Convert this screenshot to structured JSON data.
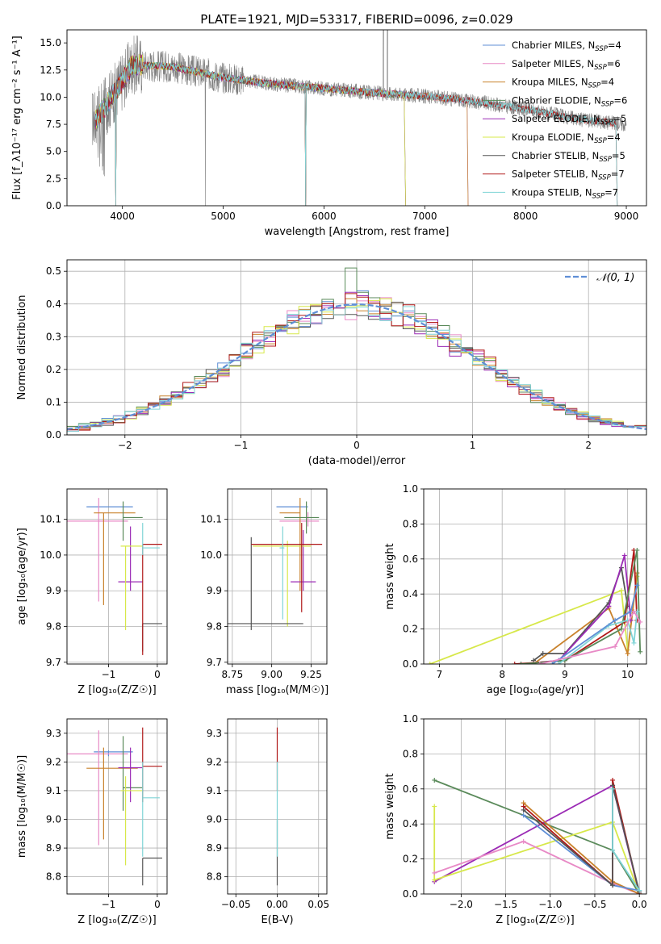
{
  "colors": {
    "chabrier_miles": "#5f8fd6",
    "salpeter_miles": "#e88ac6",
    "kroupa_miles": "#c9822c",
    "chabrier_elodie": "#5a8a5a",
    "salpeter_elodie": "#9b2bb5",
    "kroupa_elodie": "#d7e84a",
    "chabrier_stelib": "#555555",
    "salpeter_stelib": "#b01818",
    "kroupa_stelib": "#7fd4d6",
    "data": "#808080",
    "gauss": "#5f8fd6",
    "grid": "#b0b0b0"
  },
  "chart_data": [
    {
      "id": "spectrum",
      "type": "line",
      "title": "PLATE=1921, MJD=53317, FIBERID=0096, z=0.029",
      "xlabel": "wavelength [Angstrom, rest frame]",
      "ylabel": "Flux [f_λ10⁻¹⁷ erg cm⁻² s⁻¹ A⁻¹]",
      "xlim": [
        3450,
        9200
      ],
      "ylim": [
        0,
        16.2
      ],
      "xticks": [
        4000,
        5000,
        6000,
        7000,
        8000,
        9000
      ],
      "yticks": [
        0.0,
        2.5,
        5.0,
        7.5,
        10.0,
        12.5,
        15.0
      ],
      "grid": false,
      "legend_position": "top-right",
      "continuum": {
        "x": [
          3750,
          4000,
          4100,
          4500,
          5000,
          5500,
          6000,
          6500,
          7000,
          7500,
          8000,
          8500,
          9000
        ],
        "y": [
          8.0,
          11.5,
          13.0,
          12.8,
          11.8,
          11.2,
          10.8,
          10.4,
          10.1,
          9.6,
          8.9,
          8.0,
          7.5
        ]
      },
      "series": [
        {
          "name": "Chabrier MILES, N_SSP=4",
          "label_base": "Chabrier MILES, N",
          "label_sub": "SSP",
          "label_tail": "=4",
          "color_key": "chabrier_miles",
          "end": 7420
        },
        {
          "name": "Salpeter MILES, N_SSP=6",
          "label_base": "Salpeter MILES, N",
          "label_sub": "SSP",
          "label_tail": "=6",
          "color_key": "salpeter_miles",
          "end": 7420
        },
        {
          "name": "Kroupa MILES, N_SSP=4",
          "label_base": "Kroupa MILES, N",
          "label_sub": "SSP",
          "label_tail": "=4",
          "color_key": "kroupa_miles",
          "end": 7420
        },
        {
          "name": "Chabrier ELODIE, N_SSP=6",
          "label_base": "Chabrier ELODIE, N",
          "label_sub": "SSP",
          "label_tail": "=6",
          "color_key": "chabrier_elodie",
          "end": 6800
        },
        {
          "name": "Salpeter ELODIE, N_SSP=5",
          "label_base": "Salpeter ELODIE, N",
          "label_sub": "SSP",
          "label_tail": "=5",
          "color_key": "salpeter_elodie",
          "end": 6800
        },
        {
          "name": "Kroupa ELODIE, N_SSP=4",
          "label_base": "Kroupa ELODIE, N",
          "label_sub": "SSP",
          "label_tail": "=4",
          "color_key": "kroupa_elodie",
          "end": 6800
        },
        {
          "name": "Chabrier STELIB, N_SSP=5",
          "label_base": "Chabrier STELIB, N",
          "label_sub": "SSP",
          "label_tail": "=5",
          "color_key": "chabrier_stelib",
          "end": 8900
        },
        {
          "name": "Salpeter STELIB, N_SSP=7",
          "label_base": "Salpeter STELIB, N",
          "label_sub": "SSP",
          "label_tail": "=7",
          "color_key": "salpeter_stelib",
          "end": 8900
        },
        {
          "name": "Kroupa STELIB, N_SSP=7",
          "label_base": "Kroupa STELIB, N",
          "label_sub": "SSP",
          "label_tail": "=7",
          "color_key": "kroupa_stelib",
          "end": 8900
        }
      ]
    },
    {
      "id": "residuals",
      "type": "step",
      "xlabel": "(data-model)/error",
      "ylabel": "Normed distribution",
      "xlim": [
        -2.5,
        2.5
      ],
      "ylim": [
        0,
        0.535
      ],
      "xticks": [
        -2,
        -1,
        0,
        1,
        2
      ],
      "xtick_labels": [
        "−2",
        "−1",
        "0",
        "1",
        "2"
      ],
      "yticks": [
        0.0,
        0.1,
        0.2,
        0.3,
        0.4,
        0.5
      ],
      "grid": true,
      "legend_position": "top-right",
      "gauss_label": "𝒩(0, 1)",
      "bins": {
        "start": -2.5,
        "width": 0.1,
        "count": 50
      },
      "peaks": [
        0.445,
        0.425,
        0.455,
        0.51,
        0.42,
        0.46,
        0.43,
        0.435,
        0.42
      ]
    },
    {
      "id": "age_vs_Z",
      "type": "errorbar",
      "xlabel": "Z [log₁₀(Z/Z☉)]",
      "ylabel": "age  [log₁₀(age/yr)]",
      "xlim": [
        -1.85,
        0.2
      ],
      "ylim": [
        9.695,
        10.185
      ],
      "xticks": [
        -1,
        0
      ],
      "xtick_labels": [
        "−1",
        "0"
      ],
      "yticks": [
        9.7,
        9.8,
        9.9,
        10.0,
        10.1
      ],
      "ytick_labels": [
        "9.7",
        "9.8",
        "9.9",
        "10.0",
        "10.1"
      ],
      "grid": true,
      "points": [
        {
          "color_key": "chabrier_miles",
          "x": -0.8,
          "x_lo": -1.45,
          "x_hi": -0.5,
          "y": 10.135,
          "y_lo": 10.135,
          "y_hi": 10.135
        },
        {
          "color_key": "salpeter_miles",
          "x": -1.2,
          "x_lo": -1.85,
          "x_hi": -0.6,
          "y": 10.095,
          "y_lo": 9.87,
          "y_hi": 10.16
        },
        {
          "color_key": "kroupa_miles",
          "x": -1.1,
          "x_lo": -1.3,
          "x_hi": -0.45,
          "y": 10.118,
          "y_lo": 9.86,
          "y_hi": 10.118
        },
        {
          "color_key": "chabrier_elodie",
          "x": -0.7,
          "x_lo": -0.7,
          "x_hi": -0.3,
          "y": 10.105,
          "y_lo": 10.04,
          "y_hi": 10.15
        },
        {
          "color_key": "salpeter_elodie",
          "x": -0.55,
          "x_lo": -0.8,
          "x_hi": -0.3,
          "y": 9.925,
          "y_lo": 9.9,
          "y_hi": 10.08
        },
        {
          "color_key": "kroupa_elodie",
          "x": -0.65,
          "x_lo": -0.75,
          "x_hi": -0.3,
          "y": 10.025,
          "y_lo": 9.79,
          "y_hi": 10.025
        },
        {
          "color_key": "chabrier_stelib",
          "x": -0.3,
          "x_lo": -0.3,
          "x_hi": 0.1,
          "y": 9.808,
          "y_lo": 9.73,
          "y_hi": 9.808
        },
        {
          "color_key": "salpeter_stelib",
          "x": -0.3,
          "x_lo": -0.3,
          "x_hi": 0.1,
          "y": 10.03,
          "y_lo": 9.72,
          "y_hi": 10.03
        },
        {
          "color_key": "kroupa_stelib",
          "x": -0.3,
          "x_lo": -0.3,
          "x_hi": 0.05,
          "y": 10.02,
          "y_lo": 10.0,
          "y_hi": 10.09
        }
      ]
    },
    {
      "id": "age_vs_mass",
      "type": "errorbar",
      "xlabel": "mass [log₁₀(M/M☉)]",
      "ylabel": "",
      "xlim": [
        8.72,
        9.35
      ],
      "ylim": [
        9.695,
        10.185
      ],
      "xticks": [
        8.75,
        9.0,
        9.25
      ],
      "xtick_labels": [
        "8.75",
        "9.00",
        "9.25"
      ],
      "yticks": [
        9.7,
        9.8,
        9.9,
        10.0,
        10.1
      ],
      "ytick_labels": [
        "9.7",
        "9.8",
        "9.9",
        "10.0",
        "10.1"
      ],
      "grid": true,
      "points": [
        {
          "color_key": "chabrier_miles",
          "x": 9.23,
          "x_lo": 9.03,
          "x_hi": 9.23,
          "y": 10.135,
          "y_lo": 10.135,
          "y_hi": 10.135
        },
        {
          "color_key": "salpeter_miles",
          "x": 9.23,
          "x_lo": 9.05,
          "x_hi": 9.3,
          "y": 10.095,
          "y_lo": 10.08,
          "y_hi": 10.12
        },
        {
          "color_key": "kroupa_miles",
          "x": 9.18,
          "x_lo": 9.05,
          "x_hi": 9.18,
          "y": 10.118,
          "y_lo": 9.9,
          "y_hi": 10.16
        },
        {
          "color_key": "chabrier_elodie",
          "x": 9.22,
          "x_lo": 9.08,
          "x_hi": 9.3,
          "y": 10.105,
          "y_lo": 10.06,
          "y_hi": 10.15
        },
        {
          "color_key": "salpeter_elodie",
          "x": 9.2,
          "x_lo": 9.12,
          "x_hi": 9.28,
          "y": 9.925,
          "y_lo": 9.9,
          "y_hi": 10.07
        },
        {
          "color_key": "kroupa_elodie",
          "x": 9.1,
          "x_lo": 8.88,
          "x_hi": 9.25,
          "y": 10.025,
          "y_lo": 9.8,
          "y_hi": 10.04
        },
        {
          "color_key": "chabrier_stelib",
          "x": 8.87,
          "x_lo": 8.72,
          "x_hi": 9.2,
          "y": 9.808,
          "y_lo": 9.79,
          "y_hi": 10.05
        },
        {
          "color_key": "salpeter_stelib",
          "x": 9.19,
          "x_lo": 8.87,
          "x_hi": 9.32,
          "y": 10.03,
          "y_lo": 9.84,
          "y_hi": 10.09
        },
        {
          "color_key": "kroupa_stelib",
          "x": 9.07,
          "x_lo": 9.05,
          "x_hi": 9.08,
          "y": 10.02,
          "y_lo": 9.82,
          "y_hi": 10.08
        }
      ]
    },
    {
      "id": "mass_weight_vs_age",
      "type": "line",
      "xlabel": "age  [log₁₀(age/yr)]",
      "ylabel": "mass weight",
      "xlim": [
        6.75,
        10.3
      ],
      "ylim": [
        0,
        1.0
      ],
      "xticks": [
        7,
        8,
        9,
        10
      ],
      "xtick_labels": [
        "7",
        "8",
        "9",
        "10"
      ],
      "yticks": [
        0.0,
        0.2,
        0.4,
        0.6,
        0.8,
        1.0
      ],
      "grid": true,
      "series": [
        {
          "color_key": "kroupa_elodie",
          "x": [
            6.85,
            9.9,
            10.0,
            10.15
          ],
          "y": [
            0.0,
            0.42,
            0.08,
            0.5
          ]
        },
        {
          "color_key": "kroupa_miles",
          "x": [
            8.5,
            9.7,
            10.0,
            10.15
          ],
          "y": [
            0.0,
            0.32,
            0.06,
            0.52
          ]
        },
        {
          "color_key": "chabrier_stelib",
          "x": [
            8.5,
            8.65,
            9.0,
            9.7,
            9.9,
            10.0
          ],
          "y": [
            0.02,
            0.06,
            0.06,
            0.35,
            0.55,
            0.33
          ]
        },
        {
          "color_key": "salpeter_elodie",
          "x": [
            8.3,
            8.9,
            9.7,
            9.95,
            10.05
          ],
          "y": [
            0.0,
            0.02,
            0.33,
            0.62,
            0.25
          ]
        },
        {
          "color_key": "salpeter_stelib",
          "x": [
            8.2,
            9.0,
            9.95,
            10.1,
            10.15
          ],
          "y": [
            0.0,
            0.02,
            0.24,
            0.65,
            0.25
          ]
        },
        {
          "color_key": "chabrier_elodie",
          "x": [
            8.3,
            9.0,
            9.9,
            10.15,
            10.2
          ],
          "y": [
            0.0,
            0.02,
            0.2,
            0.65,
            0.07
          ]
        },
        {
          "color_key": "kroupa_stelib",
          "x": [
            8.9,
            9.7,
            10.0,
            10.1,
            10.15
          ],
          "y": [
            0.0,
            0.22,
            0.25,
            0.12,
            0.3
          ]
        },
        {
          "color_key": "chabrier_miles",
          "x": [
            8.8,
            9.8,
            10.05,
            10.15
          ],
          "y": [
            0.0,
            0.25,
            0.3,
            0.45
          ]
        },
        {
          "color_key": "salpeter_miles",
          "x": [
            8.6,
            9.8,
            10.1,
            10.2
          ],
          "y": [
            0.0,
            0.1,
            0.3,
            0.24
          ]
        }
      ]
    },
    {
      "id": "mass_vs_Z",
      "type": "errorbar",
      "xlabel": "Z [log₁₀(Z/Z☉)]",
      "ylabel": "mass [log₁₀(M/M☉)]",
      "xlim": [
        -1.85,
        0.2
      ],
      "ylim": [
        8.74,
        9.35
      ],
      "xticks": [
        -1,
        0
      ],
      "xtick_labels": [
        "−1",
        "0"
      ],
      "yticks": [
        8.8,
        8.9,
        9.0,
        9.1,
        9.2,
        9.3
      ],
      "ytick_labels": [
        "8.8",
        "8.9",
        "9.0",
        "9.1",
        "9.2",
        "9.3"
      ],
      "grid": true,
      "points": [
        {
          "color_key": "chabrier_miles",
          "x": -1.0,
          "x_lo": -1.3,
          "x_hi": -0.5,
          "y": 9.235,
          "y_lo": 9.22,
          "y_hi": 9.24
        },
        {
          "color_key": "salpeter_miles",
          "x": -1.2,
          "x_lo": -1.85,
          "x_hi": -0.6,
          "y": 9.228,
          "y_lo": 8.91,
          "y_hi": 9.31
        },
        {
          "color_key": "kroupa_miles",
          "x": -1.1,
          "x_lo": -1.45,
          "x_hi": -0.4,
          "y": 9.178,
          "y_lo": 8.93,
          "y_hi": 9.25
        },
        {
          "color_key": "chabrier_elodie",
          "x": -0.7,
          "x_lo": -0.7,
          "x_hi": -0.3,
          "y": 9.11,
          "y_lo": 9.03,
          "y_hi": 9.29
        },
        {
          "color_key": "salpeter_elodie",
          "x": -0.55,
          "x_lo": -0.8,
          "x_hi": -0.3,
          "y": 9.18,
          "y_lo": 9.06,
          "y_hi": 9.25
        },
        {
          "color_key": "kroupa_elodie",
          "x": -0.65,
          "x_lo": -0.75,
          "x_hi": -0.3,
          "y": 9.1,
          "y_lo": 8.84,
          "y_hi": 9.15
        },
        {
          "color_key": "chabrier_stelib",
          "x": -0.3,
          "x_lo": -0.3,
          "x_hi": 0.1,
          "y": 8.865,
          "y_lo": 8.77,
          "y_hi": 8.865
        },
        {
          "color_key": "salpeter_stelib",
          "x": -0.3,
          "x_lo": -0.3,
          "x_hi": 0.1,
          "y": 9.185,
          "y_lo": 9.06,
          "y_hi": 9.32
        },
        {
          "color_key": "kroupa_stelib",
          "x": -0.3,
          "x_lo": -0.3,
          "x_hi": 0.05,
          "y": 9.075,
          "y_lo": 8.87,
          "y_hi": 9.2
        }
      ]
    },
    {
      "id": "mass_vs_EBV",
      "type": "errorbar",
      "xlabel": "E(B-V)",
      "ylabel": "",
      "xlim": [
        -0.06,
        0.06
      ],
      "ylim": [
        8.74,
        9.35
      ],
      "xticks": [
        -0.05,
        0.0,
        0.05
      ],
      "xtick_labels": [
        "−0.05",
        "0.00",
        "0.05"
      ],
      "yticks": [
        8.8,
        8.9,
        9.0,
        9.1,
        9.2,
        9.3
      ],
      "ytick_labels": [
        "8.8",
        "8.9",
        "9.0",
        "9.1",
        "9.2",
        "9.3"
      ],
      "grid": true,
      "points": [
        {
          "color_key": "chabrier_stelib",
          "x": 0.0,
          "x_lo": 0.0,
          "x_hi": 0.0,
          "y": 8.87,
          "y_lo": 8.77,
          "y_hi": 9.0
        },
        {
          "color_key": "salpeter_stelib",
          "x": 0.0,
          "x_lo": 0.0,
          "x_hi": 0.0,
          "y": 9.2,
          "y_lo": 9.1,
          "y_hi": 9.32
        },
        {
          "color_key": "kroupa_stelib",
          "x": 0.0,
          "x_lo": 0.0,
          "x_hi": 0.0,
          "y": 9.08,
          "y_lo": 8.87,
          "y_hi": 9.2
        }
      ]
    },
    {
      "id": "mass_weight_vs_Z",
      "type": "line",
      "xlabel": "Z [log₁₀(Z/Z☉)]",
      "ylabel": "mass weight",
      "xlim": [
        -2.42,
        0.08
      ],
      "ylim": [
        0,
        1.0
      ],
      "xticks": [
        -2.0,
        -1.5,
        -1.0,
        -0.5,
        0.0
      ],
      "xtick_labels": [
        "−2.0",
        "−1.5",
        "−1.0",
        "−0.5",
        "0.0"
      ],
      "yticks": [
        0.0,
        0.2,
        0.4,
        0.6,
        0.8,
        1.0
      ],
      "grid": true,
      "series": [
        {
          "color_key": "chabrier_elodie",
          "x": [
            -2.3,
            -0.3,
            0.0
          ],
          "y": [
            0.65,
            0.25,
            0.0
          ]
        },
        {
          "color_key": "salpeter_elodie",
          "x": [
            -2.3,
            -0.3,
            0.0
          ],
          "y": [
            0.07,
            0.62,
            0.0
          ]
        },
        {
          "color_key": "kroupa_elodie",
          "x": [
            -2.3,
            -2.3,
            -0.3,
            0.0
          ],
          "y": [
            0.5,
            0.08,
            0.41,
            0.0
          ]
        },
        {
          "color_key": "salpeter_miles",
          "x": [
            -2.3,
            -1.3,
            -0.3,
            0.0
          ],
          "y": [
            0.12,
            0.3,
            0.06,
            0.0
          ]
        },
        {
          "color_key": "kroupa_miles",
          "x": [
            -1.3,
            -0.3,
            0.0
          ],
          "y": [
            0.52,
            0.07,
            0.0
          ]
        },
        {
          "color_key": "salpeter_stelib",
          "x": [
            -1.3,
            -0.3,
            -0.3,
            0.0
          ],
          "y": [
            0.5,
            0.05,
            0.65,
            0.0
          ]
        },
        {
          "color_key": "chabrier_miles",
          "x": [
            -1.3,
            -0.3,
            0.0
          ],
          "y": [
            0.45,
            0.05,
            0.02
          ]
        },
        {
          "color_key": "chabrier_stelib",
          "x": [
            -1.3,
            -0.3,
            -0.3,
            0.0
          ],
          "y": [
            0.48,
            0.05,
            0.62,
            0.01
          ]
        },
        {
          "color_key": "kroupa_stelib",
          "x": [
            -0.3,
            -0.3,
            0.0
          ],
          "y": [
            0.6,
            0.25,
            0.02
          ]
        }
      ]
    }
  ]
}
